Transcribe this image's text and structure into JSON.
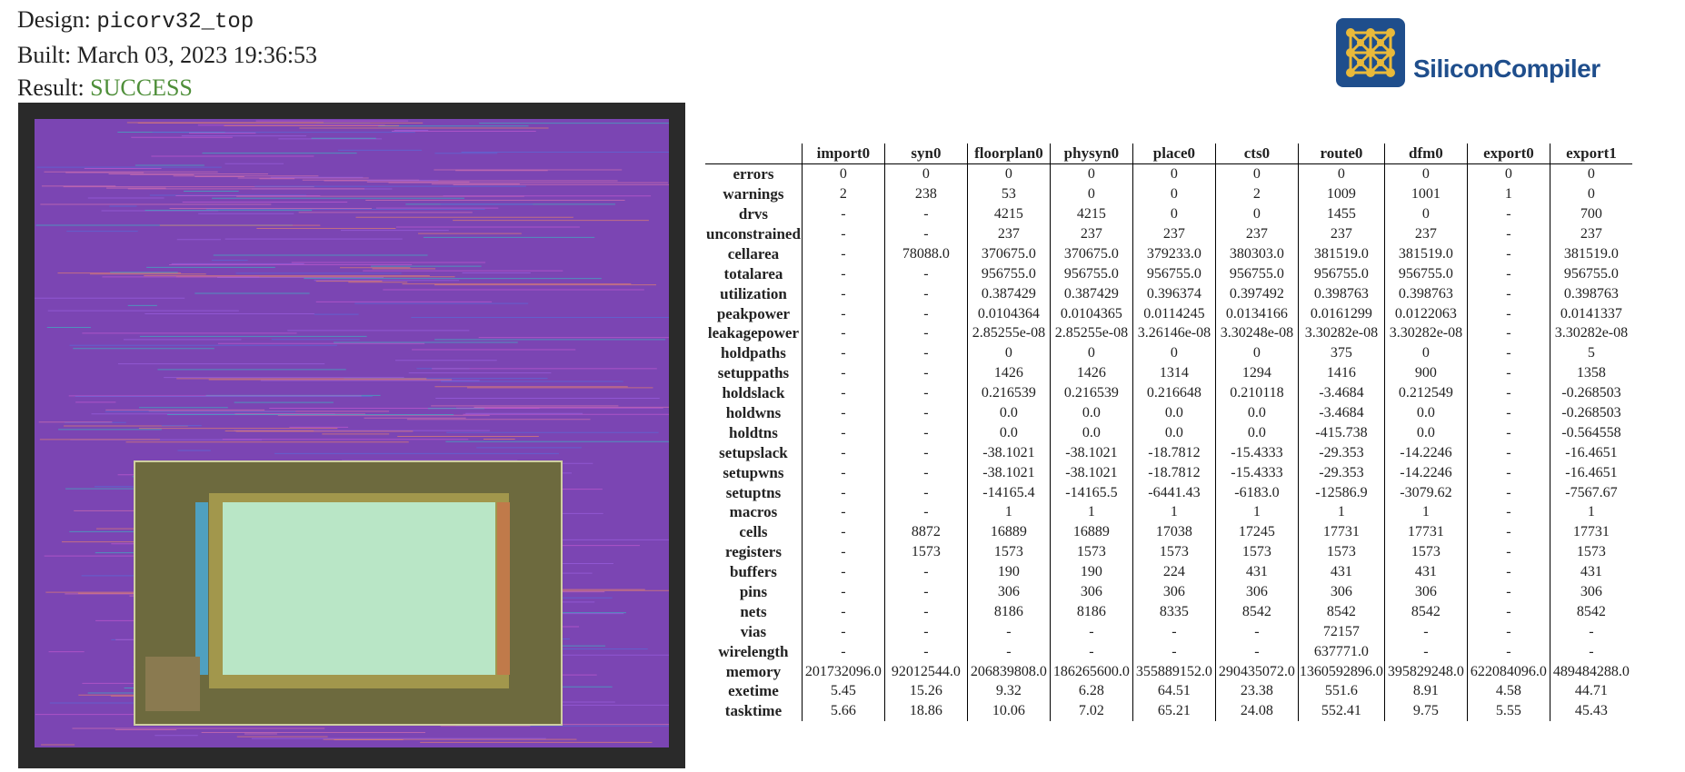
{
  "header": {
    "design_label": "Design:",
    "design": "picorv32_top",
    "built_label": "Built:",
    "built": "March 03, 2023 19:36:53",
    "result_label": "Result:",
    "result": "SUCCESS"
  },
  "logo": {
    "text": "SiliconCompiler"
  },
  "table": {
    "columns": [
      "import0",
      "syn0",
      "floorplan0",
      "physyn0",
      "place0",
      "cts0",
      "route0",
      "dfm0",
      "export0",
      "export1"
    ],
    "rows": [
      [
        "errors",
        "0",
        "0",
        "0",
        "0",
        "0",
        "0",
        "0",
        "0",
        "0",
        "0"
      ],
      [
        "warnings",
        "2",
        "238",
        "53",
        "0",
        "0",
        "2",
        "1009",
        "1001",
        "1",
        "0"
      ],
      [
        "drvs",
        "-",
        "-",
        "4215",
        "4215",
        "0",
        "0",
        "1455",
        "0",
        "-",
        "700"
      ],
      [
        "unconstrained",
        "-",
        "-",
        "237",
        "237",
        "237",
        "237",
        "237",
        "237",
        "-",
        "237"
      ],
      [
        "cellarea",
        "-",
        "78088.0",
        "370675.0",
        "370675.0",
        "379233.0",
        "380303.0",
        "381519.0",
        "381519.0",
        "-",
        "381519.0"
      ],
      [
        "totalarea",
        "-",
        "-",
        "956755.0",
        "956755.0",
        "956755.0",
        "956755.0",
        "956755.0",
        "956755.0",
        "-",
        "956755.0"
      ],
      [
        "utilization",
        "-",
        "-",
        "0.387429",
        "0.387429",
        "0.396374",
        "0.397492",
        "0.398763",
        "0.398763",
        "-",
        "0.398763"
      ],
      [
        "peakpower",
        "-",
        "-",
        "0.0104364",
        "0.0104365",
        "0.0114245",
        "0.0134166",
        "0.0161299",
        "0.0122063",
        "-",
        "0.0141337"
      ],
      [
        "leakagepower",
        "-",
        "-",
        "2.85255e-08",
        "2.85255e-08",
        "3.26146e-08",
        "3.30248e-08",
        "3.30282e-08",
        "3.30282e-08",
        "-",
        "3.30282e-08"
      ],
      [
        "holdpaths",
        "-",
        "-",
        "0",
        "0",
        "0",
        "0",
        "375",
        "0",
        "-",
        "5"
      ],
      [
        "setuppaths",
        "-",
        "-",
        "1426",
        "1426",
        "1314",
        "1294",
        "1416",
        "900",
        "-",
        "1358"
      ],
      [
        "holdslack",
        "-",
        "-",
        "0.216539",
        "0.216539",
        "0.216648",
        "0.210118",
        "-3.4684",
        "0.212549",
        "-",
        "-0.268503"
      ],
      [
        "holdwns",
        "-",
        "-",
        "0.0",
        "0.0",
        "0.0",
        "0.0",
        "-3.4684",
        "0.0",
        "-",
        "-0.268503"
      ],
      [
        "holdtns",
        "-",
        "-",
        "0.0",
        "0.0",
        "0.0",
        "0.0",
        "-415.738",
        "0.0",
        "-",
        "-0.564558"
      ],
      [
        "setupslack",
        "-",
        "-",
        "-38.1021",
        "-38.1021",
        "-18.7812",
        "-15.4333",
        "-29.353",
        "-14.2246",
        "-",
        "-16.4651"
      ],
      [
        "setupwns",
        "-",
        "-",
        "-38.1021",
        "-38.1021",
        "-18.7812",
        "-15.4333",
        "-29.353",
        "-14.2246",
        "-",
        "-16.4651"
      ],
      [
        "setuptns",
        "-",
        "-",
        "-14165.4",
        "-14165.5",
        "-6441.43",
        "-6183.0",
        "-12586.9",
        "-3079.62",
        "-",
        "-7567.67"
      ],
      [
        "macros",
        "-",
        "-",
        "1",
        "1",
        "1",
        "1",
        "1",
        "1",
        "-",
        "1"
      ],
      [
        "cells",
        "-",
        "8872",
        "16889",
        "16889",
        "17038",
        "17245",
        "17731",
        "17731",
        "-",
        "17731"
      ],
      [
        "registers",
        "-",
        "1573",
        "1573",
        "1573",
        "1573",
        "1573",
        "1573",
        "1573",
        "-",
        "1573"
      ],
      [
        "buffers",
        "-",
        "-",
        "190",
        "190",
        "224",
        "431",
        "431",
        "431",
        "-",
        "431"
      ],
      [
        "pins",
        "-",
        "-",
        "306",
        "306",
        "306",
        "306",
        "306",
        "306",
        "-",
        "306"
      ],
      [
        "nets",
        "-",
        "-",
        "8186",
        "8186",
        "8335",
        "8542",
        "8542",
        "8542",
        "-",
        "8542"
      ],
      [
        "vias",
        "-",
        "-",
        "-",
        "-",
        "-",
        "-",
        "72157",
        "-",
        "-",
        "-"
      ],
      [
        "wirelength",
        "-",
        "-",
        "-",
        "-",
        "-",
        "-",
        "637771.0",
        "-",
        "-",
        "-"
      ],
      [
        "memory",
        "201732096.0",
        "92012544.0",
        "206839808.0",
        "186265600.0",
        "355889152.0",
        "290435072.0",
        "1360592896.0",
        "395829248.0",
        "622084096.0",
        "489484288.0"
      ],
      [
        "exetime",
        "5.45",
        "15.26",
        "9.32",
        "6.28",
        "64.51",
        "23.38",
        "551.6",
        "8.91",
        "4.58",
        "44.71"
      ],
      [
        "tasktime",
        "5.66",
        "18.86",
        "10.06",
        "7.02",
        "65.21",
        "24.08",
        "552.41",
        "9.75",
        "5.55",
        "45.43"
      ]
    ]
  }
}
